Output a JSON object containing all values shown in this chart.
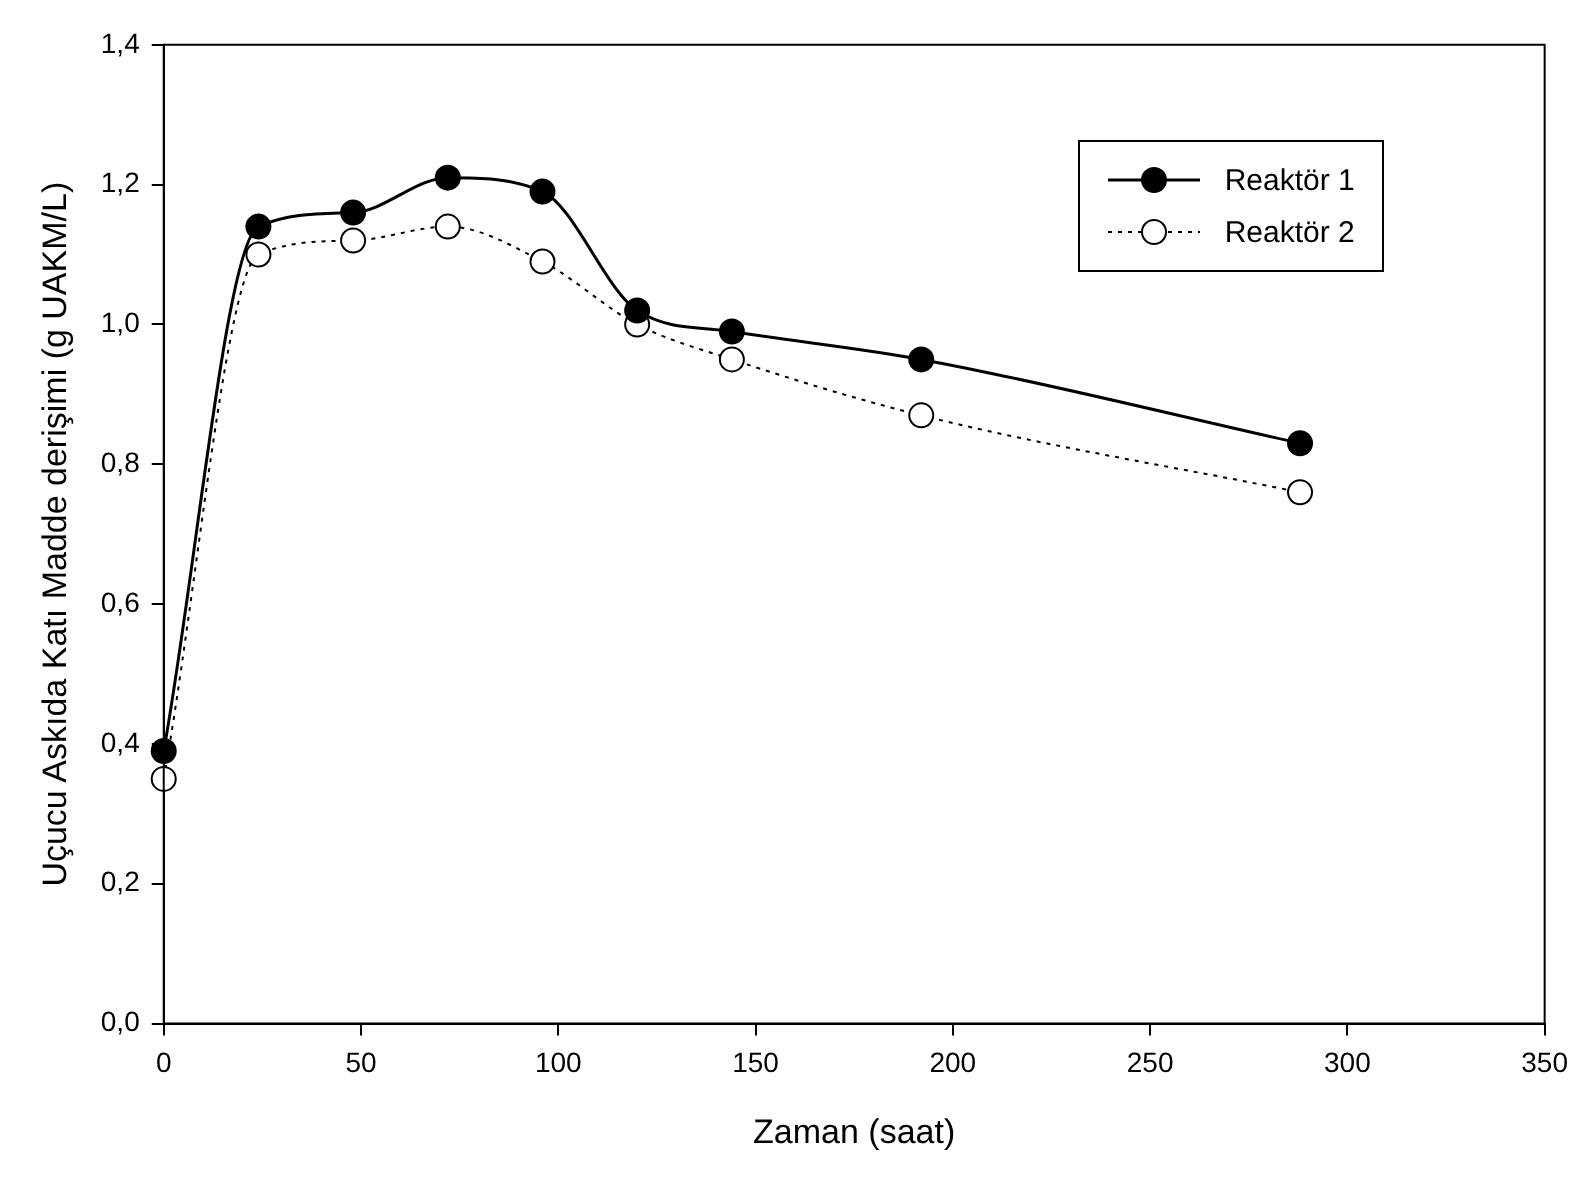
{
  "chart_data": {
    "type": "line",
    "xlabel": "Zaman (saat)",
    "ylabel": "Uçucu Askıda Katı Madde derişimi (g UAKM/L)",
    "x": [
      0,
      24,
      48,
      72,
      96,
      120,
      144,
      192,
      288
    ],
    "series": [
      {
        "name": "Reaktör 1",
        "color": "#000000",
        "line_style": "solid",
        "values": [
          0.39,
          1.14,
          1.16,
          1.21,
          1.19,
          1.02,
          0.99,
          0.95,
          0.83
        ]
      },
      {
        "name": "Reaktör 2",
        "color": "#000000",
        "line_style": "dotted",
        "values": [
          0.35,
          1.1,
          1.12,
          1.14,
          1.09,
          1.0,
          0.95,
          0.87,
          0.76
        ]
      }
    ],
    "xlim": [
      0,
      350
    ],
    "xticks": [
      0,
      50,
      100,
      150,
      200,
      250,
      300,
      350
    ],
    "ylim": [
      0,
      1.4
    ],
    "yticks": [
      {
        "value": 0,
        "label": "0,0"
      },
      {
        "value": 0.2,
        "label": "0,2"
      },
      {
        "value": 0.4,
        "label": "0,4"
      },
      {
        "value": 0.6,
        "label": "0,6"
      },
      {
        "value": 0.8,
        "label": "0,8"
      },
      {
        "value": 1.0,
        "label": "1,0"
      },
      {
        "value": 1.2,
        "label": "1,2"
      },
      {
        "value": 1.4,
        "label": "1,4"
      }
    ],
    "marker": "circle",
    "legend": "top right",
    "grid": false
  }
}
